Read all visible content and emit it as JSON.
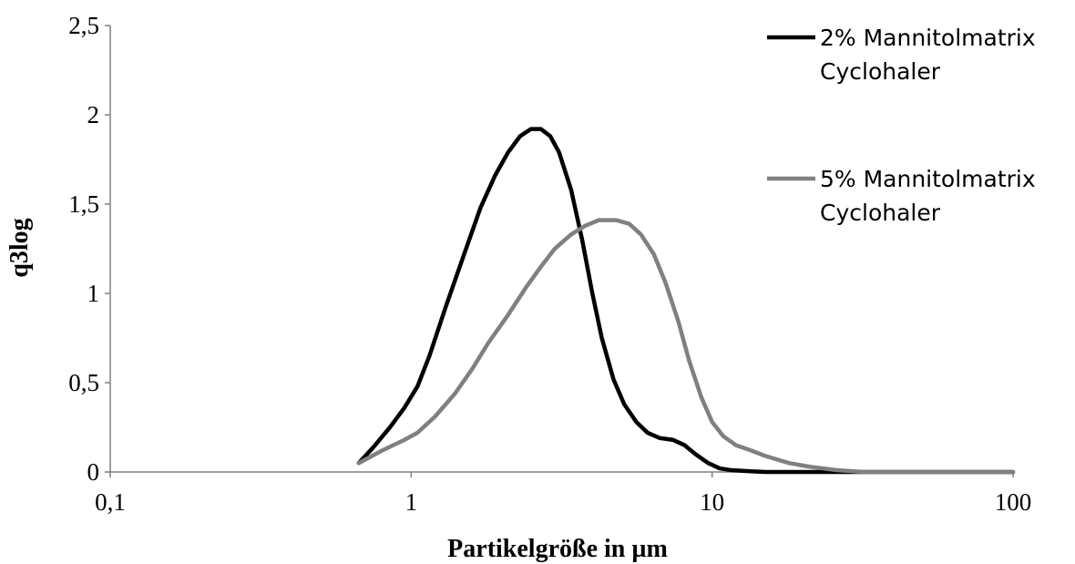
{
  "chart_data": {
    "type": "line",
    "title": "",
    "xlabel": "Partikelgröße in µm",
    "ylabel": "q3log",
    "x_scale": "log",
    "xlim": [
      0.1,
      100
    ],
    "ylim": [
      0,
      2.5
    ],
    "x_ticks": [
      "0,1",
      "1",
      "10",
      "100"
    ],
    "y_ticks": [
      "0",
      "0,5",
      "1",
      "1,5",
      "2",
      "2,5"
    ],
    "grid": false,
    "legend_position": "right",
    "series": [
      {
        "name_lines": [
          "2% Mannitolmatrix",
          "Cyclohaler"
        ],
        "color": "#000000",
        "points": [
          [
            0.67,
            0.05
          ],
          [
            0.75,
            0.14
          ],
          [
            0.85,
            0.25
          ],
          [
            0.95,
            0.36
          ],
          [
            1.05,
            0.48
          ],
          [
            1.15,
            0.65
          ],
          [
            1.3,
            0.92
          ],
          [
            1.5,
            1.22
          ],
          [
            1.7,
            1.48
          ],
          [
            1.9,
            1.66
          ],
          [
            2.1,
            1.79
          ],
          [
            2.3,
            1.88
          ],
          [
            2.5,
            1.92
          ],
          [
            2.7,
            1.92
          ],
          [
            2.9,
            1.88
          ],
          [
            3.1,
            1.79
          ],
          [
            3.4,
            1.58
          ],
          [
            3.7,
            1.3
          ],
          [
            4.0,
            1.0
          ],
          [
            4.3,
            0.75
          ],
          [
            4.7,
            0.52
          ],
          [
            5.1,
            0.38
          ],
          [
            5.6,
            0.28
          ],
          [
            6.1,
            0.22
          ],
          [
            6.7,
            0.19
          ],
          [
            7.4,
            0.18
          ],
          [
            8.1,
            0.15
          ],
          [
            8.8,
            0.1
          ],
          [
            9.7,
            0.05
          ],
          [
            10.6,
            0.02
          ],
          [
            11.6,
            0.01
          ],
          [
            13,
            0.005
          ],
          [
            15,
            0.0
          ],
          [
            20,
            0.0
          ],
          [
            30,
            0.0
          ],
          [
            50,
            0.0
          ],
          [
            70,
            0.0
          ],
          [
            100,
            0.0
          ]
        ]
      },
      {
        "name_lines": [
          "5% Mannitolmatrix",
          "Cyclohaler"
        ],
        "color": "#808080",
        "points": [
          [
            0.67,
            0.05
          ],
          [
            0.8,
            0.12
          ],
          [
            0.95,
            0.18
          ],
          [
            1.05,
            0.22
          ],
          [
            1.2,
            0.31
          ],
          [
            1.4,
            0.44
          ],
          [
            1.6,
            0.58
          ],
          [
            1.8,
            0.72
          ],
          [
            2.1,
            0.88
          ],
          [
            2.4,
            1.03
          ],
          [
            2.7,
            1.15
          ],
          [
            3.0,
            1.25
          ],
          [
            3.4,
            1.33
          ],
          [
            3.8,
            1.38
          ],
          [
            4.2,
            1.41
          ],
          [
            4.8,
            1.41
          ],
          [
            5.3,
            1.39
          ],
          [
            5.8,
            1.33
          ],
          [
            6.4,
            1.22
          ],
          [
            7.0,
            1.06
          ],
          [
            7.7,
            0.85
          ],
          [
            8.4,
            0.62
          ],
          [
            9.2,
            0.42
          ],
          [
            10.0,
            0.28
          ],
          [
            10.9,
            0.2
          ],
          [
            12.0,
            0.15
          ],
          [
            13.5,
            0.12
          ],
          [
            15,
            0.09
          ],
          [
            18,
            0.05
          ],
          [
            21,
            0.03
          ],
          [
            26,
            0.01
          ],
          [
            32,
            0.0
          ],
          [
            45,
            0.0
          ],
          [
            60,
            0.0
          ],
          [
            80,
            0.0
          ],
          [
            100,
            0.0
          ]
        ]
      }
    ]
  }
}
